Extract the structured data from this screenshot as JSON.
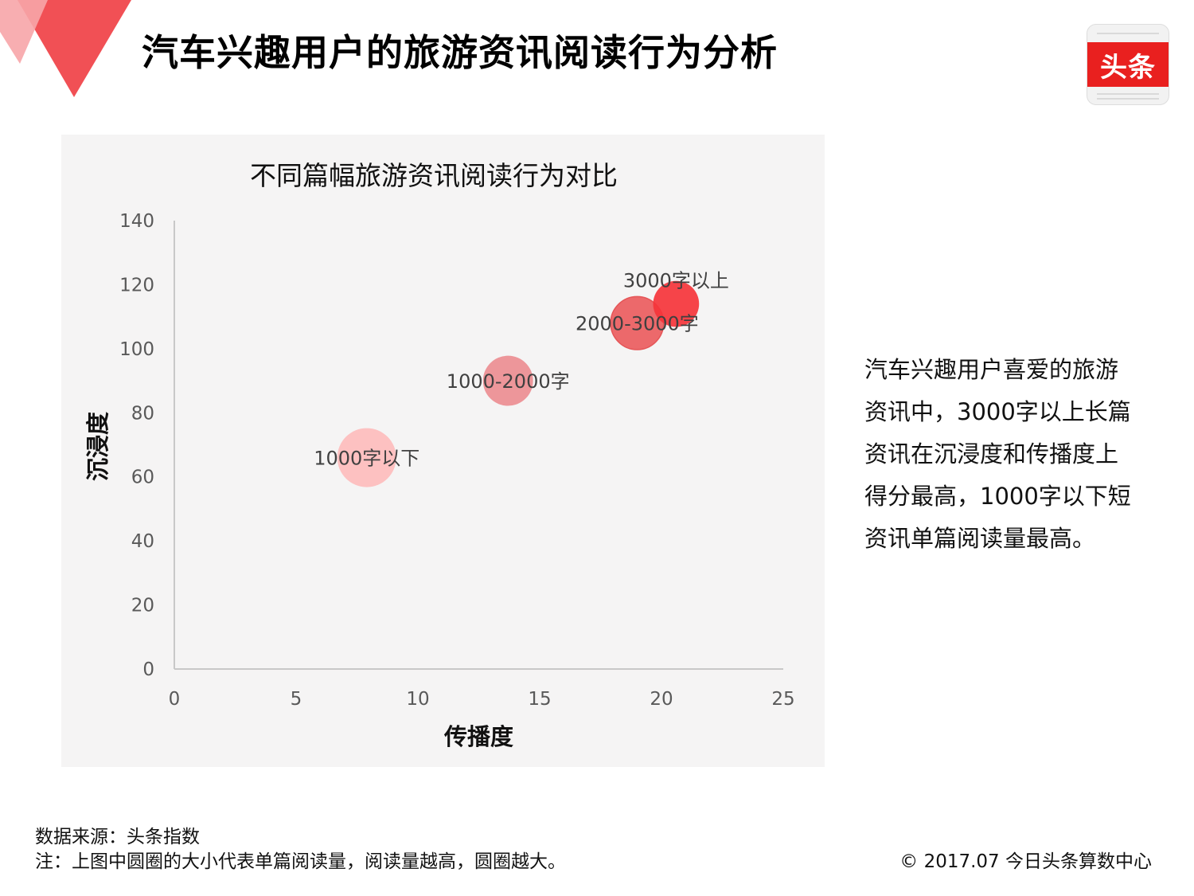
{
  "page": {
    "title": "汽车兴趣用户的旅游资讯阅读行为分析",
    "logo_text": "头条",
    "side_text": "汽车兴趣用户喜爱的旅游资讯中，3000字以上长篇资讯在沉浸度和传播度上得分最高，1000字以下短资讯单篇阅读量最高。",
    "source": "数据来源：头条指数",
    "note": "注：上图中圆圈的大小代表单篇阅读量，阅读量越高，圆圈越大。",
    "copyright": "© 2017.07 今日头条算数中心"
  },
  "colors": {
    "accent": "#e9201f",
    "corner_dark": "#f0474c",
    "corner_light": "#f7a5a8",
    "panel_bg": "#f5f4f4"
  },
  "chart_data": {
    "type": "bubble",
    "title": "不同篇幅旅游资讯阅读行为对比",
    "xlabel": "传播度",
    "ylabel": "沉浸度",
    "xlim": [
      0,
      25
    ],
    "ylim": [
      0,
      140
    ],
    "xticks": [
      0,
      5,
      10,
      15,
      20,
      25
    ],
    "yticks": [
      0,
      20,
      40,
      60,
      80,
      100,
      120,
      140
    ],
    "grid": false,
    "legend": "none",
    "points": [
      {
        "label": "1000字以下",
        "x": 7.9,
        "y": 66,
        "relative_size": 1.0,
        "color": "#fdbcbc"
      },
      {
        "label": "1000-2000字",
        "x": 13.7,
        "y": 90,
        "relative_size": 0.85,
        "color": "#ec8d91"
      },
      {
        "label": "2000-3000字",
        "x": 19.0,
        "y": 108,
        "relative_size": 0.9,
        "color": "#ea5c5e"
      },
      {
        "label": "3000字以上",
        "x": 20.6,
        "y": 114,
        "relative_size": 0.78,
        "color": "#f5343a"
      }
    ]
  }
}
